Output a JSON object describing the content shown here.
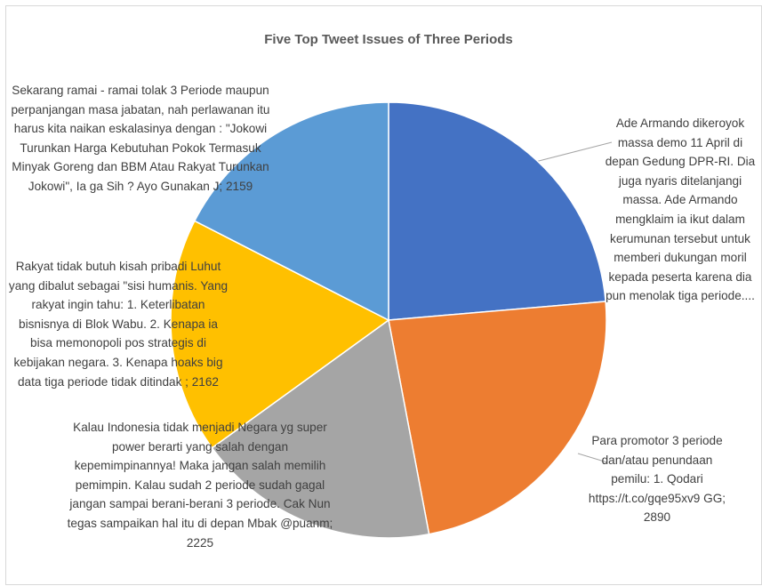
{
  "chart_data": {
    "type": "pie",
    "title": "Five Top Tweet Issues of Three Periods",
    "values": [
      2920,
      2890,
      2225,
      2162,
      2159
    ],
    "value_labels": [
      "Ade Armando dikeroyok massa demo 11 April di depan Gedung DPR-RI. Dia juga nyaris ditelanjangi massa. Ade Armando mengklaim ia ikut dalam kerumunan tersebut untuk memberi dukungan moril kepada peserta karena dia pun menolak tiga periode....",
      "Para promotor 3 periode dan/atau penundaan pemilu: 1. Qodari https://t.co/gqe95xv9 GG; 2890",
      "Kalau Indonesia tidak menjadi Negara yg super power berarti yang salah dengan kepemimpinannya! Maka jangan salah memilih pemimpin. Kalau sudah 2 periode sudah gagal jangan sampai berani-berani 3 periode. Cak Nun tegas sampaikan hal itu di depan Mbak @puanm; 2225",
      "Rakyat tidak butuh kisah pribadi Luhut yang dibalut sebagai \"sisi humanis. Yang rakyat ingin tahu: 1. Keterlibatan bisnisnya di Blok Wabu. 2. Kenapa ia bisa memonopoli pos strategis di kebijakan negara. 3. Kenapa hoaks big data tiga periode tidak ditindak ; 2162",
      "Sekarang ramai - ramai tolak 3 Periode maupun perpanjangan masa jabatan, nah perlawanan itu harus kita naikan eskalasinya dengan : \"Jokowi Turunkan Harga Kebutuhan Pokok Termasuk Minyak Goreng dan BBM Atau Rakyat Turunkan Jokowi\", Ia ga Sih ? Ayo Gunakan J; 2159"
    ],
    "colors": [
      "#4472c4",
      "#ed7d31",
      "#a5a5a5",
      "#ffc000",
      "#5b9bd5"
    ]
  }
}
